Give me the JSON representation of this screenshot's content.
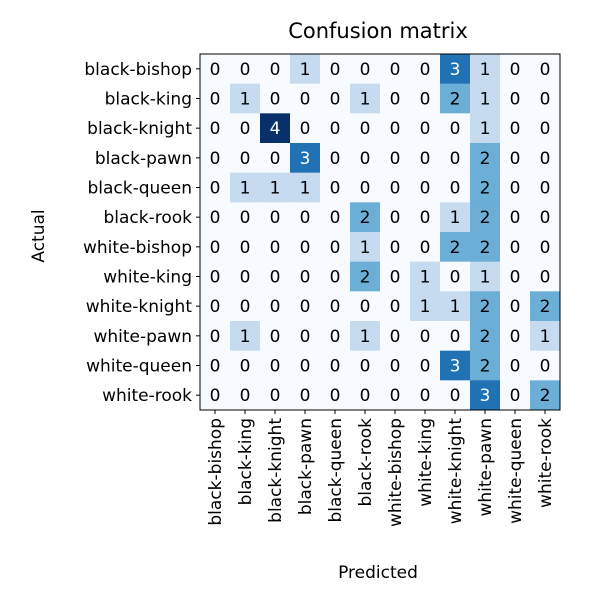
{
  "chart_data": {
    "type": "heatmap",
    "title": "Confusion matrix",
    "xlabel": "Predicted",
    "ylabel": "Actual",
    "colormap": "Blues",
    "color_range": [
      0,
      4
    ],
    "row_labels": [
      "black-bishop",
      "black-king",
      "black-knight",
      "black-pawn",
      "black-queen",
      "black-rook",
      "white-bishop",
      "white-king",
      "white-knight",
      "white-pawn",
      "white-queen",
      "white-rook"
    ],
    "col_labels": [
      "black-bishop",
      "black-king",
      "black-knight",
      "black-pawn",
      "black-queen",
      "black-rook",
      "white-bishop",
      "white-king",
      "white-knight",
      "white-pawn",
      "white-queen",
      "white-rook"
    ],
    "values": [
      [
        0,
        0,
        0,
        1,
        0,
        0,
        0,
        0,
        3,
        1,
        0,
        0
      ],
      [
        0,
        1,
        0,
        0,
        0,
        1,
        0,
        0,
        2,
        1,
        0,
        0
      ],
      [
        0,
        0,
        4,
        0,
        0,
        0,
        0,
        0,
        0,
        1,
        0,
        0
      ],
      [
        0,
        0,
        0,
        3,
        0,
        0,
        0,
        0,
        0,
        2,
        0,
        0
      ],
      [
        0,
        1,
        1,
        1,
        0,
        0,
        0,
        0,
        0,
        2,
        0,
        0
      ],
      [
        0,
        0,
        0,
        0,
        0,
        2,
        0,
        0,
        1,
        2,
        0,
        0
      ],
      [
        0,
        0,
        0,
        0,
        0,
        1,
        0,
        0,
        2,
        2,
        0,
        0
      ],
      [
        0,
        0,
        0,
        0,
        0,
        2,
        0,
        1,
        0,
        1,
        0,
        0
      ],
      [
        0,
        0,
        0,
        0,
        0,
        0,
        0,
        1,
        1,
        2,
        0,
        2
      ],
      [
        0,
        1,
        0,
        0,
        0,
        1,
        0,
        0,
        0,
        2,
        0,
        1
      ],
      [
        0,
        0,
        0,
        0,
        0,
        0,
        0,
        0,
        3,
        2,
        0,
        0
      ],
      [
        0,
        0,
        0,
        0,
        0,
        0,
        0,
        0,
        0,
        3,
        0,
        2
      ]
    ]
  }
}
